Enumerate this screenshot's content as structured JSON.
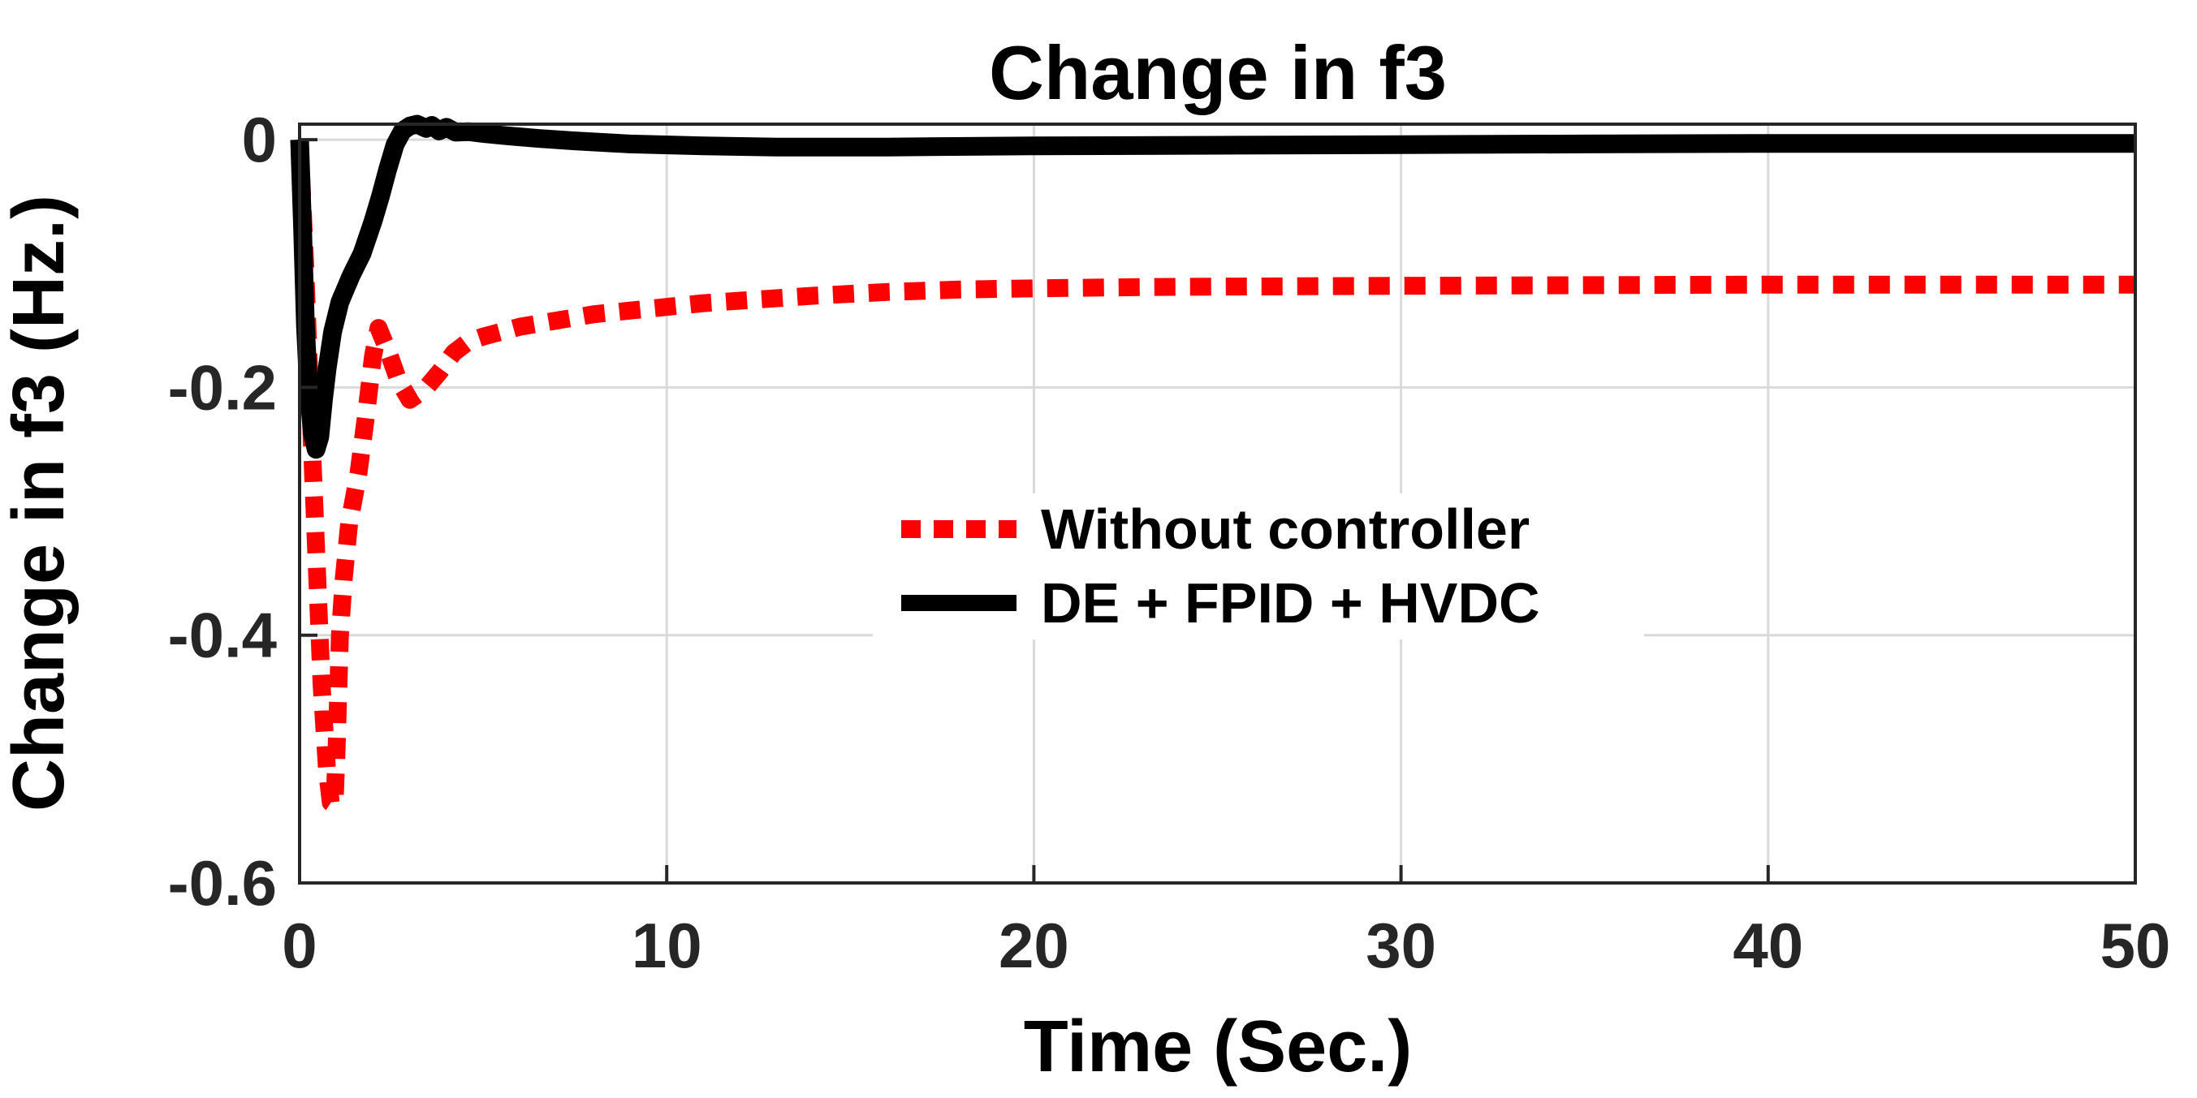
{
  "title": "Change in f3",
  "axes": {
    "x_label": "Time (Sec.)",
    "y_label": "Change in f3 (Hz.)"
  },
  "legend": {
    "entries": [
      {
        "label": "Without controller",
        "color": "#ff0000",
        "style": "dotted"
      },
      {
        "label": "DE + FPID + HVDC",
        "color": "#000000",
        "style": "solid"
      }
    ]
  },
  "chart_data": {
    "type": "line",
    "title": "Change in f3",
    "xlabel": "Time (Sec.)",
    "ylabel": "Change in f3 (Hz.)",
    "xlim": [
      0,
      50
    ],
    "ylim": [
      -0.6,
      0.0125
    ],
    "x_ticks": [
      0,
      10,
      20,
      30,
      40,
      50
    ],
    "y_ticks": [
      0,
      -0.2,
      -0.4,
      -0.6
    ],
    "grid": true,
    "legend_position": "center-right, no box, white background",
    "background": "#ffffff",
    "grid_color": "#d9d9d9",
    "series": [
      {
        "name": "Without controller",
        "color": "#ff0000",
        "line_style": "dotted",
        "points": [
          [
            0,
            0
          ],
          [
            0.15,
            -0.1
          ],
          [
            0.3,
            -0.22
          ],
          [
            0.45,
            -0.33
          ],
          [
            0.6,
            -0.44
          ],
          [
            0.75,
            -0.51
          ],
          [
            0.85,
            -0.535
          ],
          [
            0.95,
            -0.537
          ],
          [
            1.0,
            -0.5
          ],
          [
            1.1,
            -0.4
          ],
          [
            1.2,
            -0.355
          ],
          [
            1.35,
            -0.31
          ],
          [
            1.6,
            -0.27
          ],
          [
            1.8,
            -0.225
          ],
          [
            2.0,
            -0.175
          ],
          [
            2.15,
            -0.152
          ],
          [
            2.4,
            -0.17
          ],
          [
            2.7,
            -0.195
          ],
          [
            3.0,
            -0.21
          ],
          [
            3.4,
            -0.202
          ],
          [
            3.8,
            -0.188
          ],
          [
            4.2,
            -0.172
          ],
          [
            4.6,
            -0.163
          ],
          [
            5.0,
            -0.159
          ],
          [
            5.5,
            -0.155
          ],
          [
            6,
            -0.151
          ],
          [
            7,
            -0.146
          ],
          [
            8,
            -0.141
          ],
          [
            9,
            -0.138
          ],
          [
            10,
            -0.135
          ],
          [
            11,
            -0.132
          ],
          [
            12,
            -0.13
          ],
          [
            14,
            -0.126
          ],
          [
            16,
            -0.123
          ],
          [
            18,
            -0.121
          ],
          [
            20,
            -0.12
          ],
          [
            23,
            -0.119
          ],
          [
            26,
            -0.1185
          ],
          [
            30,
            -0.118
          ],
          [
            35,
            -0.1175
          ],
          [
            40,
            -0.117
          ],
          [
            45,
            -0.117
          ],
          [
            50,
            -0.117
          ]
        ]
      },
      {
        "name": "DE + FPID + HVDC",
        "color": "#000000",
        "line_style": "solid",
        "points": [
          [
            0,
            0
          ],
          [
            0.08,
            -0.07
          ],
          [
            0.16,
            -0.15
          ],
          [
            0.25,
            -0.205
          ],
          [
            0.35,
            -0.237
          ],
          [
            0.45,
            -0.25
          ],
          [
            0.55,
            -0.24
          ],
          [
            0.65,
            -0.21
          ],
          [
            0.75,
            -0.185
          ],
          [
            0.9,
            -0.155
          ],
          [
            1.1,
            -0.131
          ],
          [
            1.4,
            -0.11
          ],
          [
            1.7,
            -0.092
          ],
          [
            2.0,
            -0.066
          ],
          [
            2.2,
            -0.046
          ],
          [
            2.4,
            -0.024
          ],
          [
            2.6,
            -0.004
          ],
          [
            2.8,
            0.007
          ],
          [
            3.0,
            0.011
          ],
          [
            3.2,
            0.0125
          ],
          [
            3.45,
            0.009
          ],
          [
            3.6,
            0.0115
          ],
          [
            3.8,
            0.007
          ],
          [
            4.0,
            0.01
          ],
          [
            4.25,
            0.006
          ],
          [
            4.6,
            0.0065
          ],
          [
            5.0,
            0.005
          ],
          [
            5.5,
            0.0035
          ],
          [
            6.5,
            0.001
          ],
          [
            7.5,
            -0.001
          ],
          [
            9,
            -0.0035
          ],
          [
            11,
            -0.005
          ],
          [
            13,
            -0.006
          ],
          [
            16,
            -0.006
          ],
          [
            20,
            -0.005
          ],
          [
            25,
            -0.0045
          ],
          [
            30,
            -0.004
          ],
          [
            35,
            -0.0035
          ],
          [
            40,
            -0.003
          ],
          [
            45,
            -0.003
          ],
          [
            50,
            -0.003
          ]
        ]
      }
    ]
  }
}
